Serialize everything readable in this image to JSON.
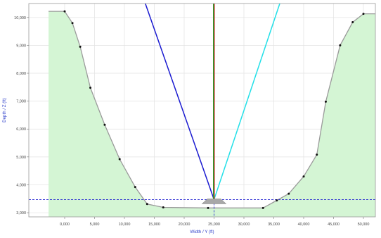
{
  "chart_data": {
    "type": "area",
    "title": "",
    "xlabel": "Width / Y (ft)",
    "ylabel": "Depth / Z (ft)",
    "xlim": [
      -6000,
      52000
    ],
    "ylim": [
      2850,
      10500
    ],
    "x_ticks": [
      0,
      5000,
      10000,
      15000,
      20000,
      25000,
      30000,
      35000,
      40000,
      45000,
      50000
    ],
    "y_ticks": [
      3000,
      4000,
      5000,
      6000,
      7000,
      8000,
      9000,
      10000
    ],
    "x_tick_labels": [
      "0,000",
      "5,000",
      "10,000",
      "15,000",
      "20,000",
      "25,000",
      "30,000",
      "35,000",
      "40,000",
      "45,000",
      "50,000"
    ],
    "y_tick_labels": [
      "3,000",
      "4,000",
      "5,000",
      "6,000",
      "7,000",
      "8,000",
      "9,000",
      "10,000"
    ],
    "grid": true,
    "series": [
      {
        "kind": "terrain-profile",
        "color": "#9a9a9a",
        "fill": "#d4f5d4",
        "points": [
          {
            "x": -2700,
            "y": 10220
          },
          {
            "x": 0,
            "y": 10220
          },
          {
            "x": 1300,
            "y": 9800
          },
          {
            "x": 2600,
            "y": 8950
          },
          {
            "x": 4300,
            "y": 7480
          },
          {
            "x": 6700,
            "y": 6150
          },
          {
            "x": 9200,
            "y": 4920
          },
          {
            "x": 11800,
            "y": 3920
          },
          {
            "x": 13800,
            "y": 3310
          },
          {
            "x": 16500,
            "y": 3190
          },
          {
            "x": 24000,
            "y": 3170
          },
          {
            "x": 33200,
            "y": 3170
          },
          {
            "x": 35500,
            "y": 3440
          },
          {
            "x": 37500,
            "y": 3680
          },
          {
            "x": 40000,
            "y": 4300
          },
          {
            "x": 42200,
            "y": 5080
          },
          {
            "x": 43700,
            "y": 6980
          },
          {
            "x": 46100,
            "y": 9000
          },
          {
            "x": 48200,
            "y": 9830
          },
          {
            "x": 50000,
            "y": 10130
          },
          {
            "x": 52000,
            "y": 10130
          }
        ],
        "markers_hidden_at": [
          -2700,
          52000
        ]
      },
      {
        "kind": "ray",
        "color": "#1a1ad0",
        "from": {
          "x": 25000,
          "y": 3470
        },
        "to": {
          "x": 13500,
          "y": 10500
        }
      },
      {
        "kind": "ray",
        "color": "#22e0e8",
        "from": {
          "x": 25000,
          "y": 3470
        },
        "to": {
          "x": 36000,
          "y": 10500
        }
      },
      {
        "kind": "vertical-line",
        "color": "#d03030",
        "x": 25050,
        "y_from": 3470,
        "y_to": 10500
      },
      {
        "kind": "vertical-line",
        "color": "#229922",
        "x": 24900,
        "y_from": 3470,
        "y_to": 10500
      }
    ],
    "reference_lines": {
      "horizontal": {
        "y": 3470,
        "color": "#1a1ad0",
        "style": "dashed"
      },
      "vertical": {
        "x": 25000,
        "color": "#1a1ad0",
        "style": "dashed"
      }
    },
    "well_marker": {
      "x": 25000,
      "y": 3470,
      "width": 4000,
      "color": "#a8a8a8"
    }
  }
}
